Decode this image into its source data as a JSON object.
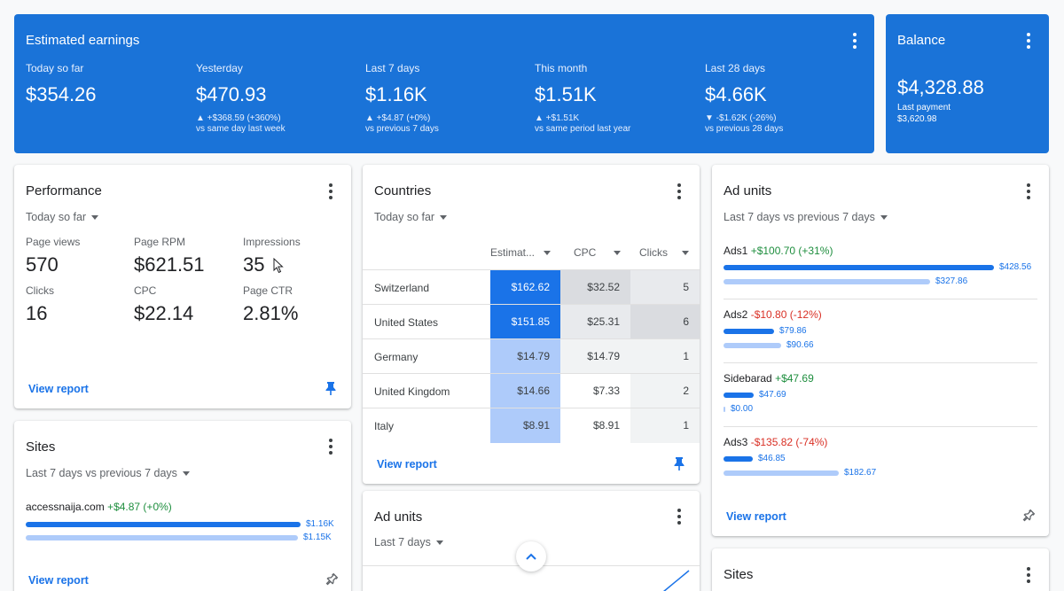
{
  "earnings": {
    "title": "Estimated earnings",
    "columns": [
      {
        "label": "Today so far",
        "value": "$354.26",
        "change": "",
        "compare": ""
      },
      {
        "label": "Yesterday",
        "value": "$470.93",
        "change": "▲ +$368.59 (+360%)",
        "compare": "vs same day last week"
      },
      {
        "label": "Last 7 days",
        "value": "$1.16K",
        "change": "▲ +$4.87 (+0%)",
        "compare": "vs previous 7 days"
      },
      {
        "label": "This month",
        "value": "$1.51K",
        "change": "▲ +$1.51K",
        "compare": "vs same period last year"
      },
      {
        "label": "Last 28 days",
        "value": "$4.66K",
        "change": "▼ -$1.62K (-26%)",
        "compare": "vs previous 28 days"
      }
    ]
  },
  "balance": {
    "title": "Balance",
    "value": "$4,328.88",
    "last_payment_label": "Last payment",
    "last_payment_value": "$3,620.98"
  },
  "performance": {
    "title": "Performance",
    "range": "Today so far",
    "metrics": [
      {
        "label": "Page views",
        "value": "570"
      },
      {
        "label": "Page RPM",
        "value": "$621.51"
      },
      {
        "label": "Impressions",
        "value": "35"
      },
      {
        "label": "Clicks",
        "value": "16"
      },
      {
        "label": "CPC",
        "value": "$22.14"
      },
      {
        "label": "Page CTR",
        "value": "2.81%"
      }
    ],
    "view_report": "View report"
  },
  "countries": {
    "title": "Countries",
    "range": "Today so far",
    "headers": [
      "Estimat...",
      "CPC",
      "Clicks"
    ],
    "rows": [
      {
        "country": "Switzerland",
        "earnings": "$162.62",
        "cpc": "$32.52",
        "clicks": "5"
      },
      {
        "country": "United States",
        "earnings": "$151.85",
        "cpc": "$25.31",
        "clicks": "6"
      },
      {
        "country": "Germany",
        "earnings": "$14.79",
        "cpc": "$14.79",
        "clicks": "1"
      },
      {
        "country": "United Kingdom",
        "earnings": "$14.66",
        "cpc": "$7.33",
        "clicks": "2"
      },
      {
        "country": "Italy",
        "earnings": "$8.91",
        "cpc": "$8.91",
        "clicks": "1"
      }
    ],
    "view_report": "View report"
  },
  "ad_units_right": {
    "title": "Ad units",
    "range": "Last 7 days vs previous 7 days",
    "units": [
      {
        "name": "Ads1",
        "change": "+$100.70 (+31%)",
        "current": "$428.56",
        "previous": "$327.86",
        "current_fraction": 1.0,
        "previous_fraction": 0.765
      },
      {
        "name": "Ads2",
        "change": "-$10.80 (-12%)",
        "current": "$79.86",
        "previous": "$90.66",
        "current_fraction": 0.186,
        "previous_fraction": 0.212
      },
      {
        "name": "Sidebarad",
        "change": "+$47.69",
        "current": "$47.69",
        "previous": "$0.00",
        "current_fraction": 0.111,
        "previous_fraction": 0.0
      },
      {
        "name": "Ads3",
        "change": "-$135.82 (-74%)",
        "current": "$46.85",
        "previous": "$182.67",
        "current_fraction": 0.109,
        "previous_fraction": 0.426
      }
    ],
    "view_report": "View report"
  },
  "sites_left": {
    "title": "Sites",
    "range": "Last 7 days vs previous 7 days",
    "site": {
      "name": "accessnaija.com",
      "change": "+$4.87 (+0%)",
      "current": "$1.16K",
      "previous": "$1.15K",
      "current_fraction": 1.0,
      "previous_fraction": 0.991
    },
    "view_report": "View report"
  },
  "ad_units_mid": {
    "title": "Ad units",
    "range": "Last 7 days"
  },
  "sites_right": {
    "title": "Sites"
  },
  "colors": {
    "brand_blue": "#1a73d8",
    "positive": "#1e8e3e",
    "negative": "#d93025",
    "bar_current": "#1a73e8",
    "bar_previous": "#aecbfa"
  }
}
